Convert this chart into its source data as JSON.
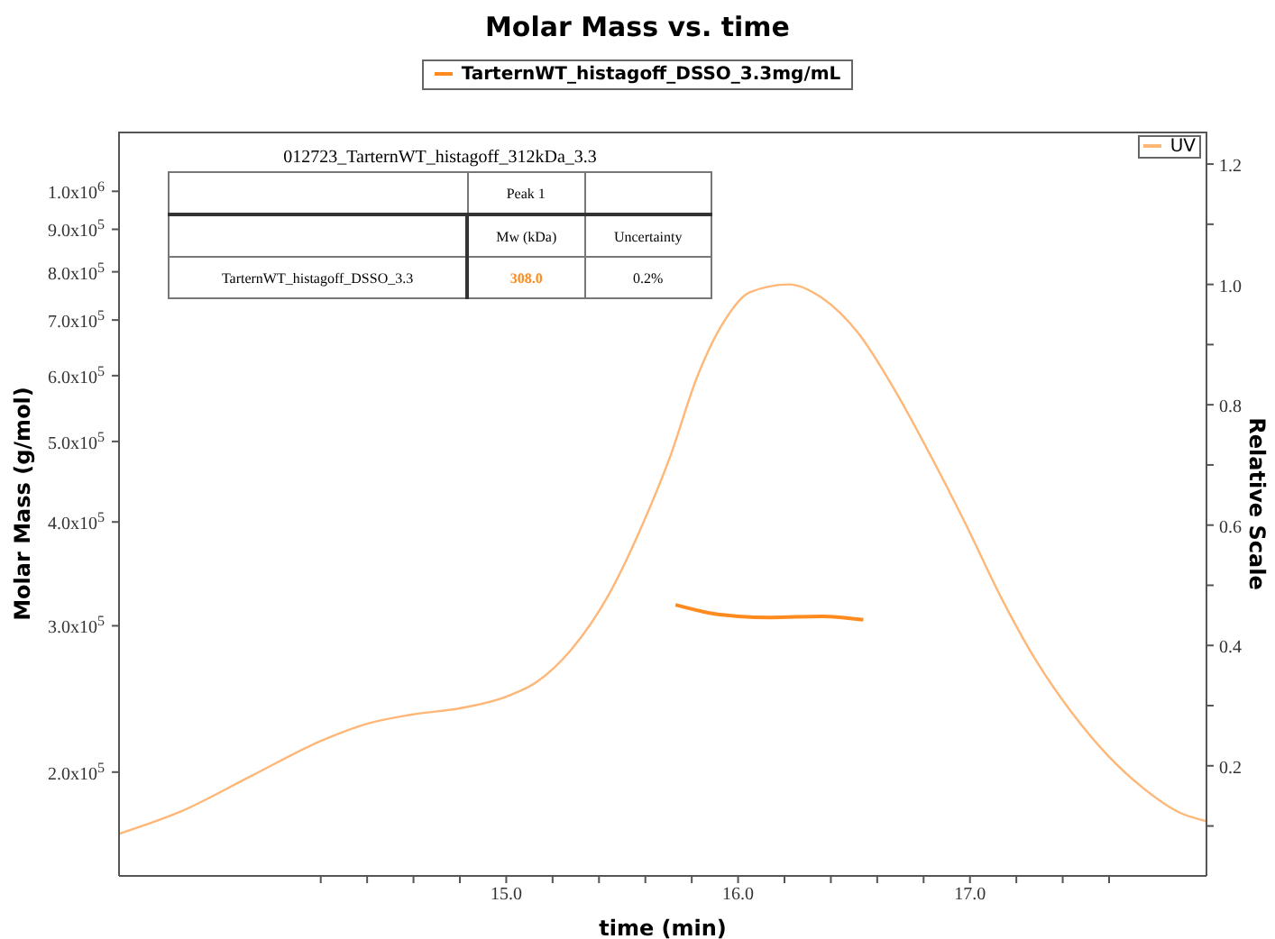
{
  "chart_data": {
    "type": "line",
    "title": "Molar Mass vs. time",
    "xlabel": "time (min)",
    "ylabel": "Molar Mass (g/mol)",
    "y2label": "Relative Scale",
    "annotations": [
      "012723_TarternWT_histagoff_312kDa_3.3",
      "Peak 1",
      "Mw (kDa)",
      "Uncertainty",
      "TarternWT_histagoff_DSSO_3.3",
      "308.0",
      "0.2%"
    ],
    "log": "y",
    "legend": "top",
    "marker": "none",
    "line_style": "solid",
    "xlim": [
      13.33,
      18.02
    ],
    "xticks": [
      {
        "value": 14.2,
        "label": null
      },
      {
        "value": 14.4,
        "label": null
      },
      {
        "value": 14.6,
        "label": null
      },
      {
        "value": 14.8,
        "label": null
      },
      {
        "value": 15,
        "label": "15.0"
      },
      {
        "value": 15.2,
        "label": null
      },
      {
        "value": 15.4,
        "label": null
      },
      {
        "value": 15.6,
        "label": null
      },
      {
        "value": 15.8,
        "label": null
      },
      {
        "value": 16,
        "label": "16.0"
      },
      {
        "value": 16.2,
        "label": null
      },
      {
        "value": 16.4,
        "label": null
      },
      {
        "value": 16.6,
        "label": null
      },
      {
        "value": 16.8,
        "label": null
      },
      {
        "value": 17,
        "label": "17.0"
      },
      {
        "value": 17.2,
        "label": null
      },
      {
        "value": 17.4,
        "label": null
      },
      {
        "value": 17.6,
        "label": null
      }
    ],
    "ylim": [
      150000,
      1180000
    ],
    "yticks": [
      {
        "value": 200000,
        "label": "2.0x10$^{5}$"
      },
      {
        "value": 300000,
        "label": "3.0x10$^{5}$"
      },
      {
        "value": 400000,
        "label": "4.0x10$^{5}$"
      },
      {
        "value": 500000,
        "label": "5.0x10$^{5}$"
      },
      {
        "value": 600000,
        "label": "6.0x10$^{5}$"
      },
      {
        "value": 700000,
        "label": "7.0x10$^{5}$"
      },
      {
        "value": 800000,
        "label": "8.0x10$^{5}$"
      },
      {
        "value": 900000,
        "label": "9.0x10$^{5}$"
      },
      {
        "value": 1000000,
        "label": "1.0x10$^{6}$"
      }
    ],
    "y2lim": [
      0.017,
      1.254
    ],
    "y2ticks": [
      {
        "value": 0.1,
        "label": null
      },
      {
        "value": 0.2,
        "label": "0.2"
      },
      {
        "value": 0.3,
        "label": null
      },
      {
        "value": 0.4,
        "label": "0.4"
      },
      {
        "value": 0.5,
        "label": null
      },
      {
        "value": 0.6,
        "label": "0.6"
      },
      {
        "value": 0.7,
        "label": null
      },
      {
        "value": 0.8,
        "label": "0.8"
      },
      {
        "value": 0.9,
        "label": null
      },
      {
        "value": 1.0,
        "label": "1.0"
      },
      {
        "value": 1.1,
        "label": null
      },
      {
        "value": 1.2,
        "label": "1.2"
      }
    ],
    "series": [
      {
        "name": "TarternWT_histagoff_DSSO_3.3mg/mL",
        "color": "#ff8a1e",
        "x": [
          15.73,
          15.9,
          16.0,
          16.14,
          16.36,
          16.54
        ],
        "values": [
          318000,
          310000,
          308000,
          307000,
          308000,
          305000
        ]
      },
      {
        "name": "UV",
        "color": "#ffb777",
        "axis": "y2",
        "x": [
          13.33,
          13.59,
          13.9,
          14.21,
          14.4,
          14.59,
          14.82,
          15.0,
          15.13,
          15.28,
          15.44,
          15.59,
          15.71,
          15.82,
          15.94,
          16.05,
          16.22,
          16.36,
          16.52,
          16.67,
          16.82,
          16.98,
          17.13,
          17.28,
          17.44,
          17.59,
          17.75,
          17.9,
          18.02
        ],
        "values": [
          0.087,
          0.123,
          0.183,
          0.243,
          0.27,
          0.285,
          0.297,
          0.315,
          0.339,
          0.393,
          0.483,
          0.603,
          0.717,
          0.843,
          0.939,
          0.987,
          1.0,
          0.978,
          0.918,
          0.828,
          0.723,
          0.603,
          0.483,
          0.378,
          0.288,
          0.219,
          0.162,
          0.123,
          0.108
        ]
      }
    ]
  }
}
